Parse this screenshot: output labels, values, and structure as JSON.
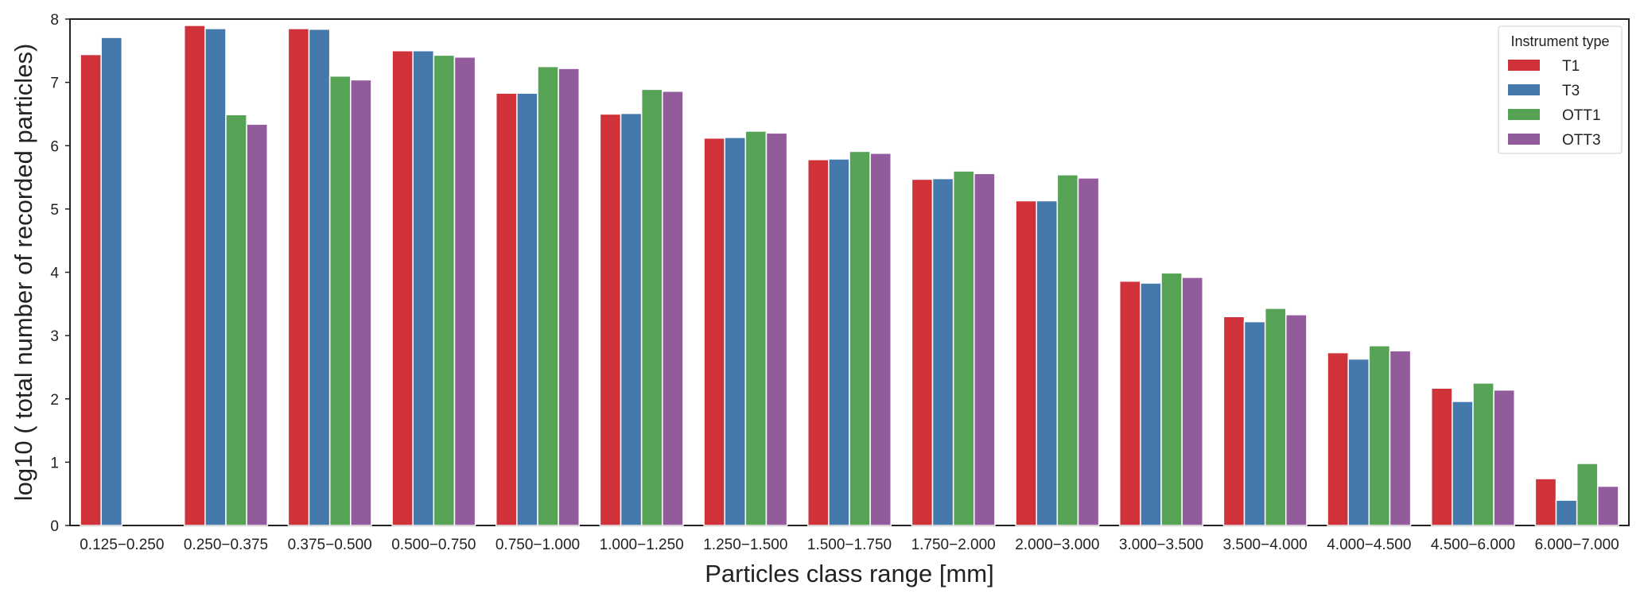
{
  "chart_data": {
    "type": "bar",
    "xlabel": "Particles class range [mm]",
    "ylabel": "log10 ( total number of recorded particles)",
    "ylim": [
      0,
      8
    ],
    "yticks": [
      "0",
      "1",
      "2",
      "3",
      "4",
      "5",
      "6",
      "7",
      "8"
    ],
    "grid": false,
    "legend": {
      "title": "Instrument type",
      "placement": "top-right"
    },
    "categories": [
      "0.125−0.250",
      "0.250−0.375",
      "0.375−0.500",
      "0.500−0.750",
      "0.750−1.000",
      "1.000−1.250",
      "1.250−1.500",
      "1.500−1.750",
      "1.750−2.000",
      "2.000−3.000",
      "3.000−3.500",
      "3.500−4.000",
      "4.000−4.500",
      "4.500−6.000",
      "6.000−7.000"
    ],
    "series": [
      {
        "name": "T1",
        "color": "#d0323a",
        "values": [
          7.44,
          7.9,
          7.85,
          7.5,
          6.83,
          6.5,
          6.12,
          5.78,
          5.47,
          5.13,
          3.86,
          3.3,
          2.73,
          2.17,
          0.74
        ]
      },
      {
        "name": "T3",
        "color": "#4579ab",
        "values": [
          7.71,
          7.85,
          7.84,
          7.5,
          6.83,
          6.51,
          6.13,
          5.79,
          5.48,
          5.13,
          3.83,
          3.22,
          2.63,
          1.96,
          0.4
        ]
      },
      {
        "name": "OTT1",
        "color": "#56a356",
        "values": [
          null,
          6.49,
          7.1,
          7.43,
          7.25,
          6.89,
          6.23,
          5.91,
          5.6,
          5.54,
          3.99,
          3.43,
          2.84,
          2.25,
          0.98
        ]
      },
      {
        "name": "OTT3",
        "color": "#925b9c",
        "values": [
          null,
          6.34,
          7.04,
          7.4,
          7.22,
          6.86,
          6.2,
          5.88,
          5.56,
          5.49,
          3.92,
          3.33,
          2.76,
          2.14,
          0.62
        ]
      }
    ]
  }
}
